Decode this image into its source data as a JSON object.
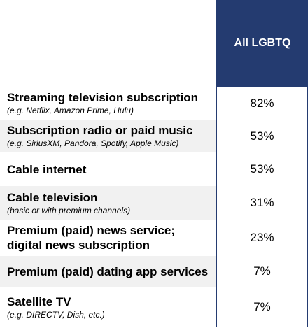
{
  "header": {
    "column_label": "All LGBTQ"
  },
  "rows": [
    {
      "label": "Streaming television subscription",
      "sub": "(e.g. Netflix, Amazon Prime, Hulu)",
      "value": "82%"
    },
    {
      "label": "Subscription radio or paid music",
      "sub": "(e.g. SiriusXM, Pandora, Spotify, Apple Music)",
      "value": "53%"
    },
    {
      "label": "Cable internet",
      "sub": "",
      "value": "53%"
    },
    {
      "label": "Cable television",
      "sub": "(basic or with premium channels)",
      "value": "31%"
    },
    {
      "label": "Premium (paid) news service;",
      "label2": "digital news subscription",
      "sub": "",
      "value": "23%"
    },
    {
      "label": "Premium (paid) dating app services",
      "sub": "",
      "value": "7%"
    },
    {
      "label": "Satellite TV",
      "sub": "(e.g. DIRECTV, Dish, etc.)",
      "value": "7%"
    }
  ],
  "colors": {
    "header_bg": "#243b70",
    "header_text": "#ffffff",
    "row_shade": "#f1f1f1"
  }
}
